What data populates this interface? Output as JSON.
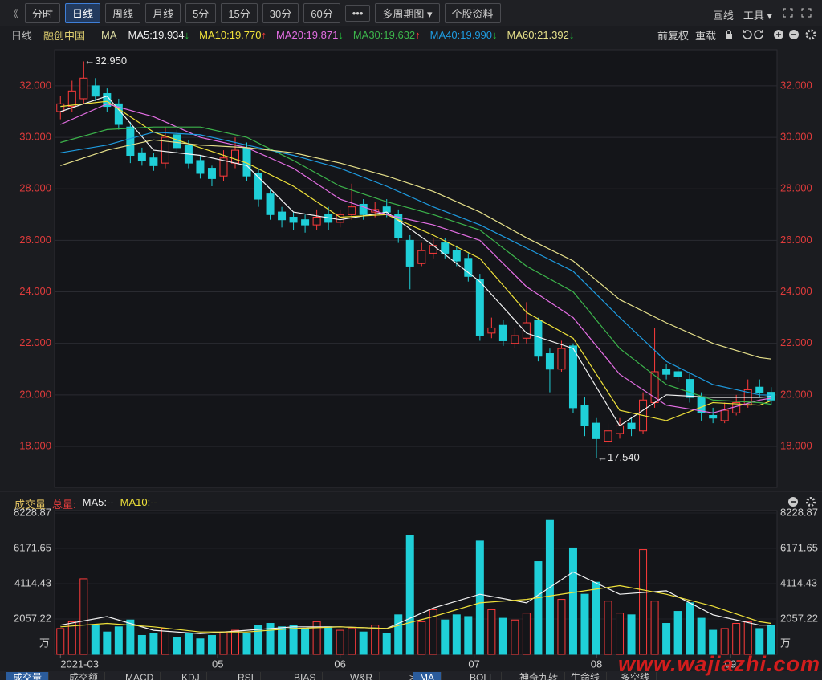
{
  "toolbar": {
    "back": "《",
    "buttons": [
      "分时",
      "日线",
      "周线",
      "月线",
      "5分",
      "15分",
      "30分",
      "60分",
      "•••",
      "多周期图 ▾",
      "个股资料"
    ],
    "tools": [
      "画线",
      "工具 ▾"
    ]
  },
  "info_bar": {
    "period": "日线",
    "stock": "融创中国",
    "indicator": "MA",
    "adjust": "前复权",
    "reload": "重载"
  },
  "volume_header": {
    "title": "成交量",
    "total": "总量:"
  },
  "tabs": {
    "left": [
      "成交量",
      "成交额",
      "MACD",
      "KDJ",
      "RSI",
      "BIAS",
      "W&R"
    ],
    "more": ">",
    "right": [
      "MA",
      "BOLL",
      "神奇九转",
      "生命线",
      "多空线"
    ]
  },
  "watermark": "www.wajiazhi.com",
  "chart_data": [
    {
      "type": "candlestick",
      "up_color": "#ff3b3b",
      "down_color": "#1fcfd8",
      "xlim": [
        -0.5,
        61.5
      ],
      "ylim": [
        16.41,
        33.4
      ],
      "yticks": [
        {
          "value": 18,
          "label": "18.000"
        },
        {
          "value": 20,
          "label": "20.000"
        },
        {
          "value": 22,
          "label": "22.000"
        },
        {
          "value": 24,
          "label": "24.000"
        },
        {
          "value": 26,
          "label": "26.000"
        },
        {
          "value": 28,
          "label": "28.000"
        },
        {
          "value": 30,
          "label": "30.000"
        },
        {
          "value": 32,
          "label": "32.000"
        }
      ],
      "grid": true,
      "open": [
        31.0,
        31.2,
        31.5,
        32.0,
        31.7,
        31.3,
        30.4,
        29.4,
        29.2,
        29.0,
        30.1,
        29.7,
        29.1,
        28.8,
        28.5,
        29.0,
        29.6,
        28.6,
        27.8,
        27.1,
        26.9,
        26.8,
        26.6,
        27.0,
        26.7,
        27.0,
        27.4,
        27.1,
        27.3,
        27.0,
        26.0,
        25.1,
        25.5,
        25.9,
        25.6,
        25.3,
        24.5,
        22.4,
        22.7,
        22.0,
        22.2,
        22.9,
        21.6,
        21.0,
        21.9,
        19.6,
        18.9,
        18.2,
        18.5,
        18.9,
        18.6,
        19.7,
        21.0,
        20.9,
        20.6,
        19.9,
        19.2,
        19.0,
        19.3,
        19.6,
        20.3,
        20.1
      ],
      "high": [
        31.6,
        32.2,
        32.95,
        32.3,
        31.9,
        31.5,
        30.6,
        29.6,
        29.4,
        30.4,
        30.3,
        29.9,
        29.3,
        28.9,
        29.5,
        30.0,
        29.8,
        28.8,
        28.0,
        27.3,
        27.1,
        27.0,
        27.2,
        27.3,
        27.2,
        28.2,
        27.6,
        27.5,
        27.6,
        27.2,
        26.2,
        25.9,
        26.1,
        26.1,
        25.8,
        25.5,
        24.7,
        23.0,
        22.9,
        22.6,
        23.6,
        23.0,
        21.8,
        22.1,
        22.0,
        19.9,
        19.1,
        18.9,
        19.1,
        19.1,
        20.1,
        22.6,
        21.2,
        21.2,
        20.9,
        20.1,
        19.5,
        19.7,
        20.0,
        20.6,
        20.6,
        20.3
      ],
      "low": [
        30.7,
        31.0,
        31.3,
        31.4,
        31.0,
        30.3,
        29.0,
        28.9,
        28.7,
        28.8,
        29.4,
        28.8,
        28.4,
        28.1,
        28.3,
        28.8,
        28.3,
        27.3,
        26.8,
        26.5,
        26.4,
        26.3,
        26.4,
        26.4,
        26.5,
        26.8,
        26.8,
        26.9,
        26.9,
        25.9,
        24.1,
        25.0,
        25.3,
        25.3,
        25.0,
        24.4,
        22.1,
        22.2,
        21.9,
        21.8,
        22.0,
        21.3,
        20.1,
        20.9,
        19.3,
        18.4,
        17.54,
        17.9,
        18.3,
        18.4,
        18.5,
        19.5,
        20.6,
        20.5,
        19.7,
        19.0,
        18.9,
        18.9,
        19.2,
        19.5,
        19.9,
        19.6
      ],
      "close": [
        31.3,
        31.8,
        32.3,
        31.6,
        31.2,
        30.5,
        29.3,
        29.1,
        28.9,
        30.0,
        29.6,
        29.0,
        28.6,
        28.4,
        29.2,
        29.5,
        28.5,
        27.6,
        27.0,
        26.8,
        26.7,
        26.6,
        26.9,
        26.7,
        27.0,
        27.3,
        27.0,
        27.2,
        27.1,
        26.1,
        25.0,
        25.6,
        25.8,
        25.5,
        25.2,
        24.6,
        22.3,
        22.6,
        22.1,
        22.3,
        22.8,
        21.5,
        21.0,
        21.8,
        19.5,
        18.8,
        18.3,
        18.6,
        18.8,
        18.7,
        19.8,
        20.9,
        20.8,
        20.7,
        19.9,
        19.3,
        19.1,
        19.4,
        19.7,
        20.2,
        20.1,
        19.8
      ],
      "annotations": [
        "←32.950",
        "←17.540"
      ],
      "line_x": [
        0,
        4,
        8,
        12,
        16,
        20,
        24,
        28,
        32,
        36,
        40,
        44,
        48,
        52,
        56,
        60,
        61
      ],
      "series": [
        {
          "name": "MA5:19.934",
          "arrow": "↓",
          "color": "#f2f2f2",
          "values": [
            31.0,
            31.6,
            29.5,
            29.3,
            28.9,
            27.1,
            26.8,
            27.1,
            25.8,
            24.4,
            22.4,
            21.8,
            18.8,
            20.0,
            19.9,
            19.9,
            19.934
          ]
        },
        {
          "name": "MA10:19.770",
          "arrow": "↑",
          "color": "#f0e23a",
          "values": [
            31.2,
            31.4,
            30.2,
            29.6,
            29.0,
            28.1,
            26.9,
            27.0,
            26.2,
            25.3,
            23.2,
            22.2,
            19.4,
            19.0,
            19.7,
            19.6,
            19.77
          ]
        },
        {
          "name": "MA20:19.871",
          "arrow": "↓",
          "color": "#e46ee4",
          "values": [
            30.5,
            31.3,
            30.8,
            30.0,
            29.6,
            28.8,
            27.6,
            27.0,
            26.6,
            26.0,
            24.2,
            23.0,
            20.8,
            19.6,
            19.3,
            19.8,
            19.871
          ]
        },
        {
          "name": "MA30:19.632",
          "arrow": "↑",
          "color": "#3cb44b",
          "values": [
            29.8,
            30.3,
            30.4,
            30.4,
            30.0,
            29.1,
            28.1,
            27.5,
            27.0,
            26.4,
            25.0,
            24.0,
            21.8,
            20.4,
            19.8,
            19.7,
            19.632
          ]
        },
        {
          "name": "MA40:19.990",
          "arrow": "↓",
          "color": "#1e9be0",
          "values": [
            29.4,
            29.7,
            30.2,
            30.1,
            29.7,
            29.3,
            28.8,
            28.1,
            27.3,
            26.6,
            25.7,
            24.8,
            23.0,
            21.3,
            20.4,
            20.0,
            19.99
          ]
        },
        {
          "name": "MA60:21.392",
          "arrow": "↓",
          "color": "#e6e08a",
          "values": [
            28.9,
            29.5,
            29.9,
            29.7,
            29.6,
            29.4,
            29.0,
            28.5,
            27.9,
            27.1,
            26.1,
            25.2,
            23.7,
            22.8,
            22.0,
            21.45,
            21.392
          ]
        }
      ]
    },
    {
      "type": "bar",
      "xlim": [
        -0.5,
        61.5
      ],
      "ylim": [
        0,
        8372
      ],
      "yticks": [
        2057.22,
        4114.43,
        6171.65,
        8228.87
      ],
      "y_unit": "万",
      "grid": true,
      "xticks": [
        {
          "value": 0,
          "label": "2021-03"
        },
        {
          "value": 13.5,
          "label": "05"
        },
        {
          "value": 24,
          "label": "06"
        },
        {
          "value": 35.5,
          "label": "07"
        },
        {
          "value": 46,
          "label": "08"
        },
        {
          "value": 57.5,
          "label": "09"
        }
      ],
      "values": [
        1500,
        1900,
        4400,
        1700,
        1300,
        1600,
        2000,
        1100,
        1200,
        1500,
        1000,
        1200,
        900,
        1100,
        1300,
        1400,
        1200,
        1700,
        1800,
        1600,
        1700,
        1500,
        1900,
        1600,
        1400,
        1500,
        1300,
        1700,
        1200,
        2300,
        6900,
        1900,
        2600,
        2000,
        2300,
        2200,
        6600,
        2600,
        2100,
        2000,
        2400,
        5400,
        7800,
        3200,
        6200,
        3500,
        4200,
        3100,
        2400,
        2300,
        6100,
        3100,
        1800,
        2500,
        3000,
        2100,
        1400,
        1500,
        1800,
        1900,
        1500,
        1700
      ],
      "line_x": [
        0,
        4,
        8,
        12,
        16,
        20,
        24,
        28,
        32,
        36,
        40,
        44,
        48,
        52,
        56,
        60,
        61
      ],
      "series": [
        {
          "name": "MA5:--",
          "color": "#f2f2f2",
          "values": [
            1700,
            2200,
            1400,
            1200,
            1400,
            1600,
            1600,
            1500,
            2700,
            3500,
            3000,
            4800,
            3500,
            3700,
            2300,
            1700,
            1700
          ]
        },
        {
          "name": "MA10:--",
          "color": "#f0e23a",
          "values": [
            1600,
            1800,
            1600,
            1300,
            1300,
            1500,
            1600,
            1500,
            2200,
            3000,
            3200,
            3600,
            4000,
            3500,
            2800,
            1900,
            1800
          ]
        }
      ]
    }
  ]
}
